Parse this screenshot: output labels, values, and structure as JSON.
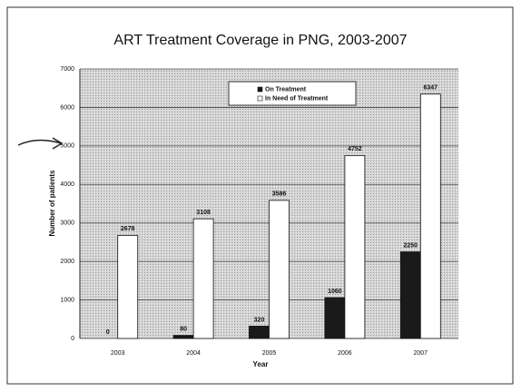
{
  "chart_data": {
    "type": "bar",
    "title": "ART Treatment Coverage in PNG, 2003-2007",
    "x_label": "Year",
    "y_label": "Number of patients",
    "categories": [
      "2003",
      "2004",
      "2005",
      "2006",
      "2007"
    ],
    "series": [
      {
        "name": "On Treatment",
        "color": "#1a1a1a",
        "values": [
          0,
          80,
          320,
          1060,
          2250
        ]
      },
      {
        "name": "In Need of Treatment",
        "color": "#ffffff",
        "values": [
          2678,
          3108,
          3586,
          4752,
          6347
        ]
      }
    ],
    "ylim": [
      0,
      7000
    ],
    "yticks": [
      0,
      1000,
      2000,
      3000,
      4000,
      5000,
      6000,
      7000
    ],
    "grid": true,
    "legend": "top"
  }
}
